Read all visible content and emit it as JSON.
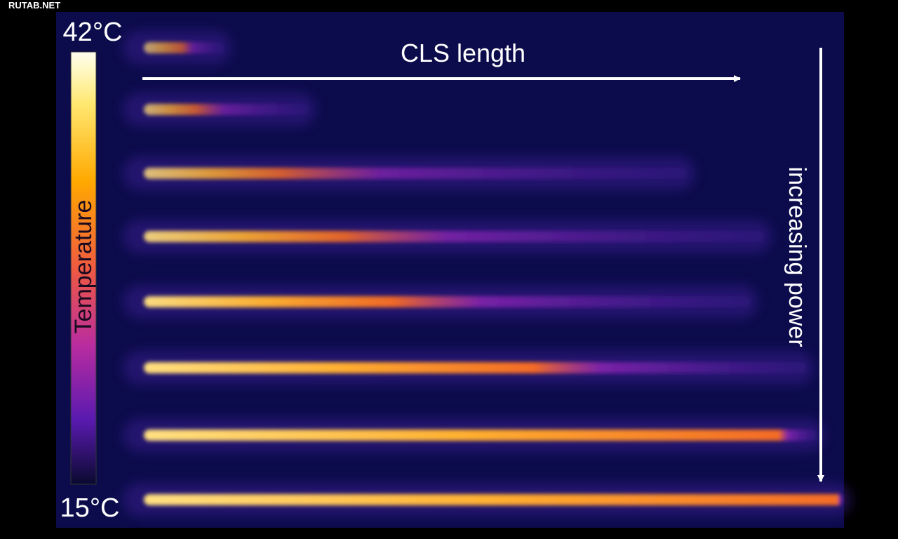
{
  "watermark": "RUTAB.NET",
  "colorbar": {
    "max_label": "42°C",
    "min_label": "15°C",
    "title": "Temperature"
  },
  "annotations": {
    "x_arrow": "CLS length",
    "y_arrow": "increasing power"
  }
}
